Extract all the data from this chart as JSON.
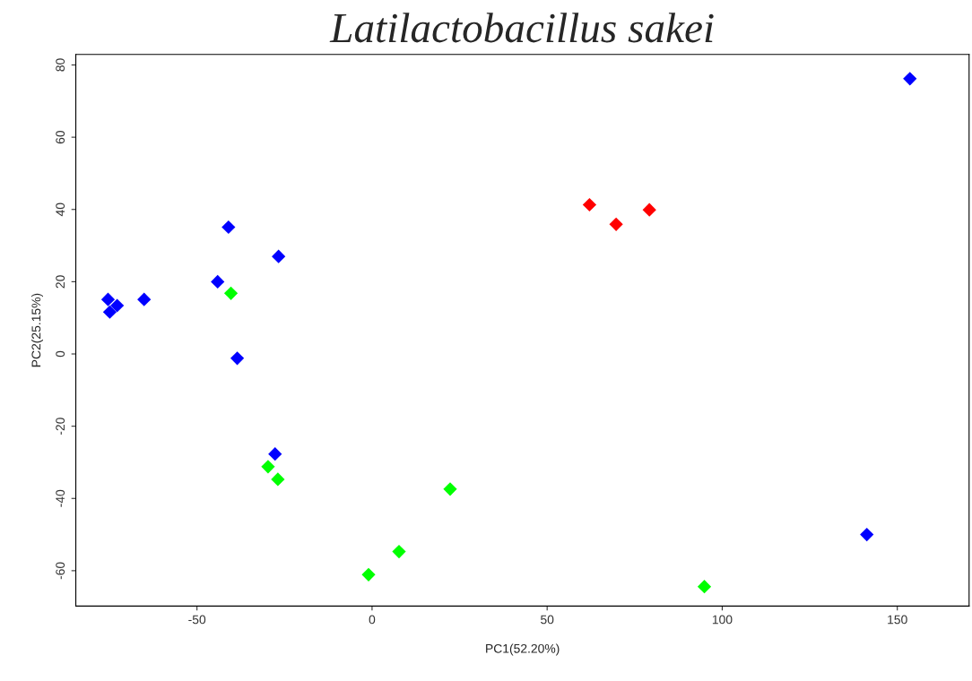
{
  "chart_data": {
    "type": "scatter",
    "title": "Latilactobacillus sakei",
    "xlabel": "PC1(52.20%)",
    "ylabel": "PC2(25.15%)",
    "xlim": [
      -84.6,
      170.5
    ],
    "ylim": [
      -69.8,
      82.9
    ],
    "xticks": [
      -50,
      0,
      50,
      100,
      150
    ],
    "yticks": [
      -60,
      -40,
      -20,
      0,
      20,
      40,
      60,
      80
    ],
    "grid": false,
    "marker": "diamond",
    "series": [
      {
        "color": "#0000ff",
        "x": [
          153.6,
          -41.0,
          -26.7,
          -44.1,
          -75.4,
          -72.8,
          -74.9,
          -65.1,
          -38.5,
          -27.7,
          141.3
        ],
        "values": [
          76.2,
          35.1,
          27.0,
          20.0,
          15.1,
          13.4,
          11.6,
          15.1,
          -1.2,
          -27.7,
          -50.0
        ]
      },
      {
        "color": "#ff0000",
        "x": [
          62.1,
          69.7,
          79.2
        ],
        "values": [
          41.3,
          35.9,
          39.9
        ]
      },
      {
        "color": "#00ff00",
        "x": [
          -40.3,
          -29.7,
          -26.9,
          22.3,
          7.7,
          -1.0,
          94.9
        ],
        "values": [
          16.8,
          -31.2,
          -34.7,
          -37.4,
          -54.7,
          -61.1,
          -64.4
        ]
      }
    ]
  }
}
